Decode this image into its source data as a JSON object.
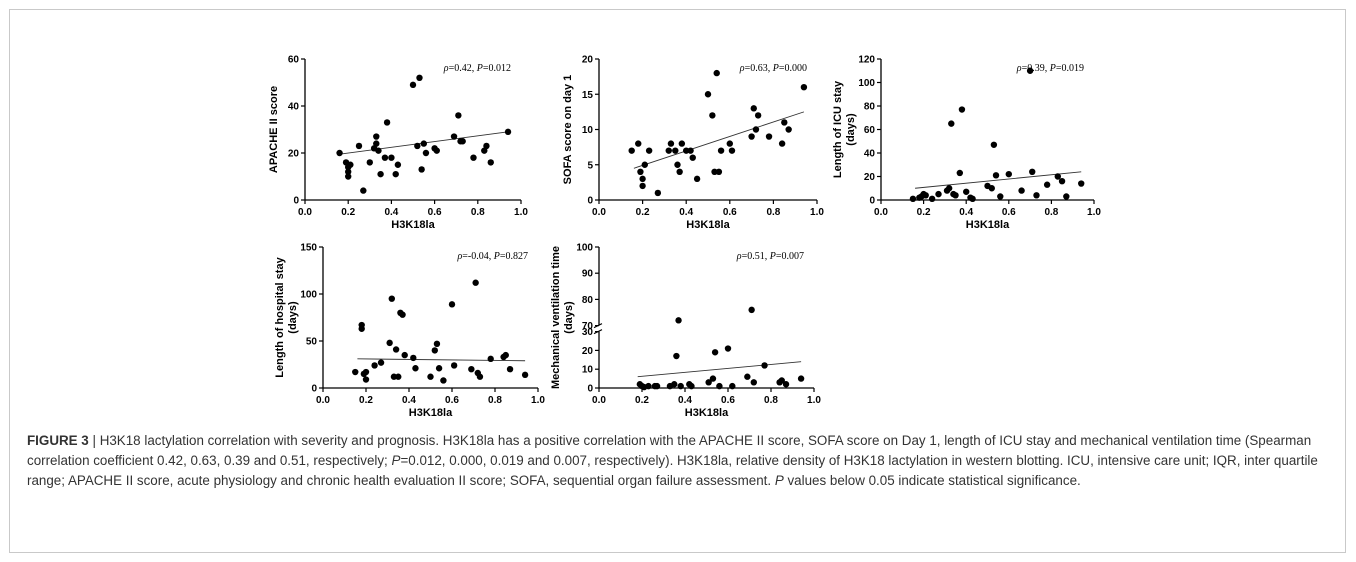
{
  "caption": {
    "label": "FIGURE 3",
    "separator": " | ",
    "p1": "H3K18 lactylation correlation with severity and prognosis. H3K18la has a positive correlation with the APACHE II score, SOFA score on Day 1, length of ICU stay and mechanical ventilation time (Spearman correlation coefficient 0.42, 0.63, 0.39 and 0.51, respectively; ",
    "p_letter": "P",
    "p2": "=0.012, 0.000, 0.019 and 0.007, respectively). H3K18la, relative density of H3K18 lactylation in western blotting. ICU, intensive care unit; IQR, inter quartile range; APACHE II score, acute physiology and chronic health evaluation II score; SOFA, sequential organ failure assessment. ",
    "p3": " values below 0.05 indicate statistical significance."
  },
  "chart_data": [
    {
      "type": "scatter",
      "xlabel": "H3K18la",
      "ylabel": "APACHE II score",
      "xlim": [
        0.0,
        1.0
      ],
      "ylim": [
        0,
        60
      ],
      "xticks": [
        "0.0",
        "0.2",
        "0.4",
        "0.6",
        "0.8",
        "1.0"
      ],
      "yticks": [
        0,
        20,
        40,
        60
      ],
      "annotation": {
        "rho": "0.42",
        "p": "0.012"
      },
      "trendline": [
        [
          0.16,
          19.5
        ],
        [
          0.94,
          29
        ]
      ],
      "points": [
        [
          0.16,
          20
        ],
        [
          0.19,
          16
        ],
        [
          0.2,
          14
        ],
        [
          0.2,
          12
        ],
        [
          0.2,
          10
        ],
        [
          0.21,
          15
        ],
        [
          0.25,
          23
        ],
        [
          0.27,
          4
        ],
        [
          0.3,
          16
        ],
        [
          0.32,
          22
        ],
        [
          0.33,
          27
        ],
        [
          0.33,
          24
        ],
        [
          0.34,
          21
        ],
        [
          0.35,
          11
        ],
        [
          0.37,
          18
        ],
        [
          0.38,
          33
        ],
        [
          0.4,
          18
        ],
        [
          0.42,
          11
        ],
        [
          0.43,
          15
        ],
        [
          0.5,
          49
        ],
        [
          0.52,
          23
        ],
        [
          0.53,
          52
        ],
        [
          0.54,
          13
        ],
        [
          0.55,
          24
        ],
        [
          0.56,
          20
        ],
        [
          0.6,
          22
        ],
        [
          0.61,
          21
        ],
        [
          0.69,
          27
        ],
        [
          0.71,
          36
        ],
        [
          0.72,
          25
        ],
        [
          0.73,
          25
        ],
        [
          0.78,
          18
        ],
        [
          0.83,
          21
        ],
        [
          0.84,
          23
        ],
        [
          0.86,
          16
        ],
        [
          0.94,
          29
        ]
      ]
    },
    {
      "type": "scatter",
      "xlabel": "H3K18la",
      "ylabel": "SOFA score on day 1",
      "xlim": [
        0.0,
        1.0
      ],
      "ylim": [
        0,
        20
      ],
      "xticks": [
        "0.0",
        "0.2",
        "0.4",
        "0.6",
        "0.8",
        "1.0"
      ],
      "yticks": [
        0,
        5,
        10,
        15,
        20
      ],
      "annotation": {
        "rho": "0.63",
        "p": "0.000"
      },
      "trendline": [
        [
          0.16,
          4.5
        ],
        [
          0.94,
          12.5
        ]
      ],
      "points": [
        [
          0.15,
          7
        ],
        [
          0.18,
          8
        ],
        [
          0.19,
          4
        ],
        [
          0.2,
          3
        ],
        [
          0.2,
          2
        ],
        [
          0.21,
          5
        ],
        [
          0.23,
          7
        ],
        [
          0.27,
          1
        ],
        [
          0.32,
          7
        ],
        [
          0.33,
          8
        ],
        [
          0.35,
          7
        ],
        [
          0.36,
          5
        ],
        [
          0.37,
          4
        ],
        [
          0.38,
          8
        ],
        [
          0.4,
          7
        ],
        [
          0.42,
          7
        ],
        [
          0.43,
          6
        ],
        [
          0.45,
          3
        ],
        [
          0.5,
          15
        ],
        [
          0.52,
          12
        ],
        [
          0.53,
          4
        ],
        [
          0.54,
          18
        ],
        [
          0.55,
          4
        ],
        [
          0.56,
          7
        ],
        [
          0.6,
          8
        ],
        [
          0.61,
          7
        ],
        [
          0.7,
          9
        ],
        [
          0.71,
          13
        ],
        [
          0.72,
          10
        ],
        [
          0.73,
          12
        ],
        [
          0.78,
          9
        ],
        [
          0.84,
          8
        ],
        [
          0.85,
          11
        ],
        [
          0.87,
          10
        ],
        [
          0.94,
          16
        ]
      ]
    },
    {
      "type": "scatter",
      "xlabel": "H3K18la",
      "ylabel": "Length of ICU stay\n(days)",
      "xlim": [
        0.0,
        1.0
      ],
      "ylim": [
        0,
        120
      ],
      "xticks": [
        "0.0",
        "0.2",
        "0.4",
        "0.6",
        "0.8",
        "1.0"
      ],
      "yticks": [
        0,
        20,
        40,
        60,
        80,
        100,
        120
      ],
      "annotation": {
        "rho": "0.39",
        "p": "0.019"
      },
      "trendline": [
        [
          0.16,
          10
        ],
        [
          0.94,
          24
        ]
      ],
      "points": [
        [
          0.15,
          1
        ],
        [
          0.18,
          2
        ],
        [
          0.19,
          3
        ],
        [
          0.2,
          5
        ],
        [
          0.21,
          4
        ],
        [
          0.24,
          1
        ],
        [
          0.27,
          5
        ],
        [
          0.31,
          8
        ],
        [
          0.32,
          10
        ],
        [
          0.33,
          65
        ],
        [
          0.34,
          5
        ],
        [
          0.35,
          4
        ],
        [
          0.37,
          23
        ],
        [
          0.38,
          77
        ],
        [
          0.4,
          7
        ],
        [
          0.42,
          2
        ],
        [
          0.43,
          1
        ],
        [
          0.5,
          12
        ],
        [
          0.52,
          10
        ],
        [
          0.53,
          47
        ],
        [
          0.54,
          21
        ],
        [
          0.56,
          3
        ],
        [
          0.6,
          22
        ],
        [
          0.66,
          8
        ],
        [
          0.7,
          110
        ],
        [
          0.71,
          24
        ],
        [
          0.73,
          4
        ],
        [
          0.78,
          13
        ],
        [
          0.83,
          20
        ],
        [
          0.85,
          16
        ],
        [
          0.87,
          3
        ],
        [
          0.94,
          14
        ]
      ]
    },
    {
      "type": "scatter",
      "xlabel": "H3K18la",
      "ylabel": "Length of hospital stay\n(days)",
      "xlim": [
        0.0,
        1.0
      ],
      "ylim": [
        0,
        150
      ],
      "xticks": [
        "0.0",
        "0.2",
        "0.4",
        "0.6",
        "0.8",
        "1.0"
      ],
      "yticks": [
        0,
        50,
        100,
        150
      ],
      "annotation": {
        "rho": "-0.04",
        "p": "0.827"
      },
      "trendline": [
        [
          0.16,
          31
        ],
        [
          0.94,
          29
        ]
      ],
      "points": [
        [
          0.15,
          17
        ],
        [
          0.18,
          63
        ],
        [
          0.18,
          67
        ],
        [
          0.19,
          15
        ],
        [
          0.2,
          17
        ],
        [
          0.2,
          9
        ],
        [
          0.24,
          24
        ],
        [
          0.27,
          27
        ],
        [
          0.31,
          48
        ],
        [
          0.32,
          95
        ],
        [
          0.33,
          12
        ],
        [
          0.34,
          41
        ],
        [
          0.35,
          12
        ],
        [
          0.36,
          80
        ],
        [
          0.37,
          78
        ],
        [
          0.38,
          35
        ],
        [
          0.42,
          32
        ],
        [
          0.43,
          21
        ],
        [
          0.5,
          12
        ],
        [
          0.52,
          40
        ],
        [
          0.53,
          47
        ],
        [
          0.54,
          21
        ],
        [
          0.56,
          8
        ],
        [
          0.6,
          89
        ],
        [
          0.61,
          24
        ],
        [
          0.69,
          20
        ],
        [
          0.71,
          112
        ],
        [
          0.72,
          16
        ],
        [
          0.73,
          12
        ],
        [
          0.78,
          31
        ],
        [
          0.84,
          33
        ],
        [
          0.85,
          35
        ],
        [
          0.87,
          20
        ],
        [
          0.94,
          14
        ]
      ]
    },
    {
      "type": "scatter",
      "xlabel": "H3K18la",
      "ylabel": "Mechanical ventilation time\n(days)",
      "xlim": [
        0.0,
        1.0
      ],
      "ylim": [
        0,
        100
      ],
      "axis_break": [
        30,
        70
      ],
      "xticks": [
        "0.0",
        "0.2",
        "0.4",
        "0.6",
        "0.8",
        "1.0"
      ],
      "yticks": [
        0,
        10,
        20,
        30,
        70,
        80,
        90,
        100
      ],
      "annotation": {
        "rho": "0.51",
        "p": "0.007"
      },
      "trendline": [
        [
          0.18,
          6
        ],
        [
          0.94,
          14
        ]
      ],
      "points": [
        [
          0.19,
          2
        ],
        [
          0.2,
          1
        ],
        [
          0.21,
          0.5
        ],
        [
          0.23,
          1
        ],
        [
          0.26,
          1
        ],
        [
          0.27,
          1
        ],
        [
          0.33,
          1
        ],
        [
          0.35,
          2
        ],
        [
          0.36,
          17
        ],
        [
          0.37,
          72
        ],
        [
          0.38,
          1
        ],
        [
          0.42,
          2
        ],
        [
          0.43,
          1
        ],
        [
          0.51,
          3
        ],
        [
          0.53,
          5
        ],
        [
          0.54,
          19
        ],
        [
          0.56,
          1
        ],
        [
          0.6,
          21
        ],
        [
          0.62,
          1
        ],
        [
          0.69,
          6
        ],
        [
          0.71,
          76
        ],
        [
          0.72,
          3
        ],
        [
          0.77,
          12
        ],
        [
          0.84,
          3
        ],
        [
          0.85,
          4
        ],
        [
          0.87,
          2
        ],
        [
          0.94,
          5
        ]
      ]
    }
  ]
}
